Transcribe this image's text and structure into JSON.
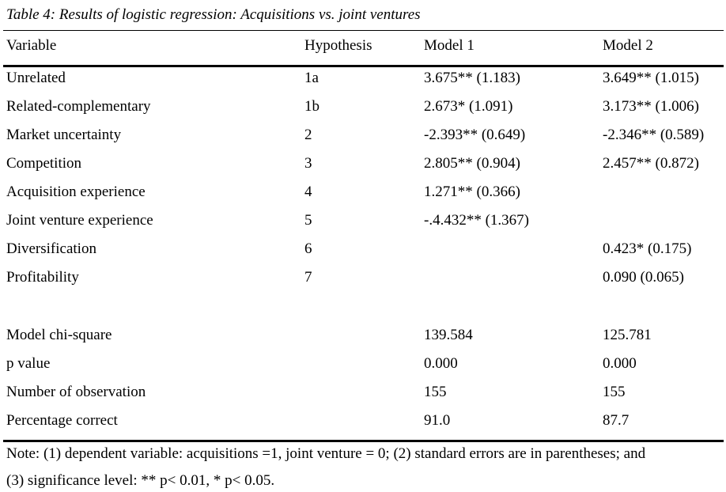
{
  "caption": "Table 4: Results of logistic regression: Acquisitions vs. joint ventures",
  "table": {
    "headers": [
      "Variable",
      "Hypothesis",
      "Model 1",
      "Model 2"
    ],
    "rows": [
      {
        "variable": "Unrelated",
        "hypothesis": "1a",
        "model1": "3.675** (1.183)",
        "model2": "3.649** (1.015)"
      },
      {
        "variable": "Related-complementary",
        "hypothesis": "1b",
        "model1": "2.673* (1.091)",
        "model2": "3.173** (1.006)"
      },
      {
        "variable": "Market uncertainty",
        "hypothesis": "2",
        "model1": "-2.393** (0.649)",
        "model2": "-2.346** (0.589)"
      },
      {
        "variable": "Competition",
        "hypothesis": "3",
        "model1": "2.805** (0.904)",
        "model2": "2.457** (0.872)"
      },
      {
        "variable": "Acquisition experience",
        "hypothesis": "4",
        "model1": "1.271** (0.366)",
        "model2": ""
      },
      {
        "variable": "Joint venture experience",
        "hypothesis": "5",
        "model1": "-.4.432** (1.367)",
        "model2": ""
      },
      {
        "variable": "Diversification",
        "hypothesis": "6",
        "model1": "",
        "model2": "0.423* (0.175)"
      },
      {
        "variable": "Profitability",
        "hypothesis": "7",
        "model1": "",
        "model2": "0.090 (0.065)"
      }
    ],
    "stats": [
      {
        "label": "Model chi-square",
        "model1": "139.584",
        "model2": "125.781"
      },
      {
        "label": "p value",
        "model1": "0.000",
        "model2": "0.000"
      },
      {
        "label": "Number of observation",
        "model1": "155",
        "model2": "155"
      },
      {
        "label": "Percentage correct",
        "model1": "91.0",
        "model2": "87.7"
      }
    ]
  },
  "note": {
    "line1": "Note: (1) dependent variable: acquisitions =1, joint venture = 0; (2) standard errors are in parentheses; and",
    "line2": "(3) significance level: ** p< 0.01, * p< 0.05."
  }
}
